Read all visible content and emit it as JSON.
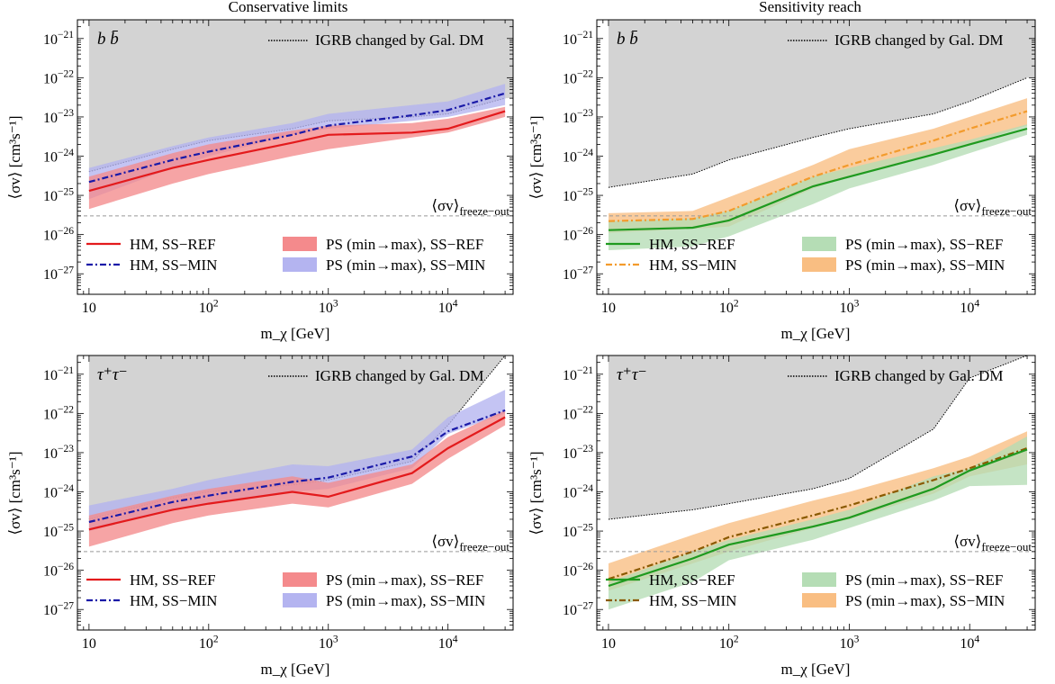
{
  "colors": {
    "grey_region": "#d3d3d3",
    "red": "#e31a1c",
    "red_band": "#f48a8c",
    "blue": "#1a1aa8",
    "blue_band": "#b4b4f0",
    "green": "#1f9a1f",
    "green_band": "#b5ddb5",
    "orange": "#f39b2c",
    "orange_band": "#f9be82",
    "freeze_line": "#999999"
  },
  "chart_data": [
    {
      "type": "area",
      "title": "Conservative limits",
      "channel": "b b̄",
      "xlabel": "m_χ [GeV]",
      "ylabel": "⟨σv⟩ [cm³s⁻¹]",
      "xscale": "log",
      "yscale": "log",
      "xlim": [
        8,
        35000
      ],
      "ylim": [
        3e-28,
        3e-21
      ],
      "xticks": [
        "10",
        "10^2",
        "10^3",
        "10^4"
      ],
      "yticks": [
        "10^-27",
        "10^-26",
        "10^-25",
        "10^-24",
        "10^-23",
        "10^-22",
        "10^-21"
      ],
      "reference_line": {
        "label": "⟨σv⟩ freeze−out",
        "y": 3e-26
      },
      "legend": {
        "igrb_label": "IGRB changed by Gal. DM",
        "lines": [
          {
            "label": "HM, SS−REF",
            "color": "#e31a1c",
            "dash": "solid"
          },
          {
            "label": "HM, SS−MIN",
            "color": "#1a1aa8",
            "dash": "dashdot"
          }
        ],
        "bands": [
          {
            "label": "PS (min→max), SS−REF",
            "color": "#f48a8c"
          },
          {
            "label": "PS (min→max), SS−MIN",
            "color": "#b4b4f0"
          }
        ]
      },
      "igrb_region": {
        "x": [
          10,
          50,
          100,
          500,
          1000,
          5000,
          10000,
          30000
        ],
        "y": [
          4e-25,
          1.5e-24,
          2.5e-24,
          5e-24,
          8e-24,
          1e-23,
          1.2e-23,
          3e-23
        ]
      },
      "series": [
        {
          "name": "HM, SS−MIN",
          "kind": "band",
          "color": "#b4b4f0",
          "x": [
            10,
            50,
            100,
            500,
            1000,
            5000,
            10000,
            30000
          ],
          "lo": [
            8e-26,
            5e-25,
            1e-24,
            3.5e-24,
            5e-24,
            8e-24,
            1e-23,
            2e-23
          ],
          "hi": [
            5e-25,
            1.8e-24,
            3e-24,
            7e-24,
            1.2e-23,
            2e-23,
            2.5e-23,
            7e-23
          ]
        },
        {
          "name": "HM, SS−REF",
          "kind": "band",
          "color": "#f48a8c",
          "x": [
            10,
            50,
            100,
            500,
            1000,
            5000,
            10000,
            30000
          ],
          "lo": [
            4.5e-26,
            2e-25,
            3.5e-25,
            1e-24,
            1.5e-24,
            3e-24,
            4e-24,
            1e-23
          ],
          "hi": [
            3e-25,
            1.2e-24,
            2e-24,
            4.5e-24,
            6e-24,
            7e-24,
            9e-24,
            1.8e-23
          ]
        },
        {
          "name": "HM, SS−REF",
          "kind": "line",
          "color": "#e31a1c",
          "dash": "solid",
          "x": [
            10,
            50,
            100,
            500,
            1000,
            5000,
            10000,
            30000
          ],
          "y": [
            1.3e-25,
            5e-25,
            8e-25,
            2.2e-24,
            3.5e-24,
            4e-24,
            5e-24,
            1.4e-23
          ]
        },
        {
          "name": "HM, SS−MIN",
          "kind": "line",
          "color": "#1a1aa8",
          "dash": "dashdot",
          "x": [
            10,
            50,
            100,
            500,
            1000,
            5000,
            10000,
            30000
          ],
          "y": [
            2.2e-25,
            8e-25,
            1.3e-24,
            3.5e-24,
            6e-24,
            1.1e-23,
            1.5e-23,
            4e-23
          ]
        }
      ]
    },
    {
      "type": "area",
      "title": "Sensitivity reach",
      "channel": "b b̄",
      "xlabel": "m_χ [GeV]",
      "ylabel": "⟨σv⟩ [cm³s⁻¹]",
      "xscale": "log",
      "yscale": "log",
      "xlim": [
        8,
        35000
      ],
      "ylim": [
        3e-28,
        3e-21
      ],
      "xticks": [
        "10",
        "10^2",
        "10^3",
        "10^4"
      ],
      "yticks": [
        "10^-27",
        "10^-26",
        "10^-25",
        "10^-24",
        "10^-23",
        "10^-22",
        "10^-21"
      ],
      "reference_line": {
        "label": "⟨σv⟩ freeze−out",
        "y": 3e-26
      },
      "legend": {
        "igrb_label": "IGRB changed by Gal. DM",
        "lines": [
          {
            "label": "HM, SS−REF",
            "color": "#1f9a1f",
            "dash": "solid"
          },
          {
            "label": "HM, SS−MIN",
            "color": "#f39b2c",
            "dash": "dashdot"
          }
        ],
        "bands": [
          {
            "label": "PS (min→max), SS−REF",
            "color": "#b5ddb5"
          },
          {
            "label": "PS (min→max), SS−MIN",
            "color": "#f9be82"
          }
        ]
      },
      "igrb_region": {
        "x": [
          10,
          50,
          100,
          500,
          1000,
          5000,
          10000,
          30000
        ],
        "y": [
          1.6e-25,
          3.5e-25,
          8e-25,
          3e-24,
          5e-24,
          1.2e-23,
          2.5e-23,
          1e-22
        ]
      },
      "series": [
        {
          "name": "HM, SS−MIN",
          "kind": "band",
          "color": "#f9be82",
          "x": [
            10,
            50,
            100,
            500,
            1000,
            5000,
            10000,
            30000
          ],
          "lo": [
            1.1e-26,
            1.4e-26,
            1.6e-26,
            1.5e-25,
            3e-25,
            1.1e-24,
            2e-24,
            6e-24
          ],
          "hi": [
            3.5e-26,
            4e-26,
            9e-26,
            6e-25,
            1.5e-24,
            5e-24,
            1e-23,
            3e-23
          ]
        },
        {
          "name": "HM, SS−REF",
          "kind": "band",
          "color": "#b5ddb5",
          "x": [
            10,
            50,
            100,
            500,
            1000,
            5000,
            10000,
            30000
          ],
          "lo": [
            4e-27,
            5e-27,
            9e-27,
            6e-26,
            1.5e-25,
            6e-25,
            1.2e-24,
            3.5e-24
          ],
          "hi": [
            2.2e-26,
            2.6e-26,
            4e-26,
            3e-25,
            5e-25,
            1.6e-24,
            2.6e-24,
            6.5e-24
          ]
        },
        {
          "name": "HM, SS−MIN",
          "kind": "line",
          "color": "#f39b2c",
          "dash": "dashdot",
          "x": [
            10,
            50,
            100,
            500,
            1000,
            5000,
            10000,
            30000
          ],
          "y": [
            2.2e-26,
            2.5e-26,
            4e-26,
            3e-25,
            6e-25,
            2.5e-24,
            5e-24,
            1.4e-23
          ]
        },
        {
          "name": "HM, SS−REF",
          "kind": "line",
          "color": "#1f9a1f",
          "dash": "solid",
          "x": [
            10,
            50,
            100,
            500,
            1000,
            5000,
            10000,
            30000
          ],
          "y": [
            1.3e-26,
            1.5e-26,
            2.3e-26,
            1.7e-25,
            3e-25,
            1.1e-24,
            2e-24,
            5e-24
          ]
        }
      ]
    },
    {
      "type": "area",
      "title": "",
      "channel": "τ⁺τ⁻",
      "xlabel": "m_χ [GeV]",
      "ylabel": "⟨σv⟩ [cm³s⁻¹]",
      "xscale": "log",
      "yscale": "log",
      "xlim": [
        8,
        35000
      ],
      "ylim": [
        3e-28,
        3e-21
      ],
      "xticks": [
        "10",
        "10^2",
        "10^3",
        "10^4"
      ],
      "yticks": [
        "10^-27",
        "10^-26",
        "10^-25",
        "10^-24",
        "10^-23",
        "10^-22",
        "10^-21"
      ],
      "reference_line": {
        "label": "⟨σv⟩ freeze−out",
        "y": 3e-26
      },
      "legend": {
        "igrb_label": "IGRB changed by Gal. DM",
        "lines": [
          {
            "label": "HM, SS−REF",
            "color": "#e31a1c",
            "dash": "solid"
          },
          {
            "label": "HM, SS−MIN",
            "color": "#1a1aa8",
            "dash": "dashdot"
          }
        ],
        "bands": [
          {
            "label": "PS (min→max), SS−REF",
            "color": "#f48a8c"
          },
          {
            "label": "PS (min→max), SS−MIN",
            "color": "#b4b4f0"
          }
        ]
      },
      "igrb_region": {
        "x": [
          10,
          50,
          100,
          500,
          1000,
          5000,
          10000,
          30000
        ],
        "y": [
          2e-25,
          7e-25,
          1e-24,
          1.5e-24,
          2e-24,
          6e-24,
          5e-23,
          3e-21
        ]
      },
      "series": [
        {
          "name": "HM, SS−MIN",
          "kind": "band",
          "color": "#b4b4f0",
          "x": [
            10,
            50,
            100,
            500,
            1000,
            5000,
            10000,
            30000
          ],
          "lo": [
            1e-25,
            3.5e-25,
            5e-25,
            1e-24,
            1.2e-24,
            4e-24,
            3e-23,
            1e-22
          ],
          "hi": [
            4.5e-25,
            1.2e-24,
            2e-24,
            5e-24,
            4.5e-24,
            1.2e-23,
            8e-23,
            4e-22
          ]
        },
        {
          "name": "HM, SS−REF",
          "kind": "band",
          "color": "#f48a8c",
          "x": [
            10,
            50,
            100,
            500,
            1000,
            5000,
            10000,
            30000
          ],
          "lo": [
            4e-26,
            1.6e-25,
            2.5e-25,
            5e-25,
            4e-25,
            1.6e-24,
            7e-24,
            5e-23
          ],
          "hi": [
            2.5e-25,
            8e-25,
            1.2e-24,
            2.5e-24,
            1.7e-24,
            5e-24,
            2.5e-23,
            1.2e-22
          ]
        },
        {
          "name": "HM, SS−REF",
          "kind": "line",
          "color": "#e31a1c",
          "dash": "solid",
          "x": [
            10,
            50,
            100,
            500,
            1000,
            5000,
            10000,
            30000
          ],
          "y": [
            1.1e-25,
            3.5e-25,
            5e-25,
            1e-24,
            7.5e-25,
            3e-24,
            1.3e-23,
            8e-23
          ]
        },
        {
          "name": "HM, SS−MIN",
          "kind": "line",
          "color": "#1a1aa8",
          "dash": "dashdot",
          "x": [
            10,
            50,
            100,
            500,
            1000,
            5000,
            10000,
            30000
          ],
          "y": [
            1.7e-25,
            5.5e-25,
            8e-25,
            1.8e-24,
            2.3e-24,
            8e-24,
            3.5e-23,
            1.2e-22
          ]
        }
      ]
    },
    {
      "type": "area",
      "title": "",
      "channel": "τ⁺τ⁻",
      "xlabel": "m_χ [GeV]",
      "ylabel": "⟨σv⟩ [cm³s⁻¹]",
      "xscale": "log",
      "yscale": "log",
      "xlim": [
        8,
        35000
      ],
      "ylim": [
        3e-28,
        3e-21
      ],
      "xticks": [
        "10",
        "10^2",
        "10^3",
        "10^4"
      ],
      "yticks": [
        "10^-27",
        "10^-26",
        "10^-25",
        "10^-24",
        "10^-23",
        "10^-22",
        "10^-21"
      ],
      "reference_line": {
        "label": "⟨σv⟩ freeze−out",
        "y": 3e-26
      },
      "legend": {
        "igrb_label": "IGRB changed by Gal. DM",
        "lines": [
          {
            "label": "HM, SS−REF",
            "color": "#1f9a1f",
            "dash": "solid"
          },
          {
            "label": "HM, SS−MIN",
            "color": "#8a5a00",
            "dash": "dashdot"
          }
        ],
        "bands": [
          {
            "label": "PS (min→max), SS−REF",
            "color": "#b5ddb5"
          },
          {
            "label": "PS (min→max), SS−MIN",
            "color": "#f9be82"
          }
        ]
      },
      "igrb_region": {
        "x": [
          10,
          50,
          100,
          500,
          1000,
          5000,
          10000,
          30000
        ],
        "y": [
          2e-25,
          3.5e-25,
          5e-25,
          1.2e-24,
          2.2e-24,
          4e-23,
          8e-22,
          3e-21
        ]
      },
      "series": [
        {
          "name": "HM, SS−MIN",
          "kind": "band",
          "color": "#f9be82",
          "x": [
            10,
            50,
            100,
            500,
            1000,
            5000,
            10000,
            30000
          ],
          "lo": [
            3e-27,
            1.5e-26,
            3e-26,
            1.2e-25,
            2e-25,
            9e-25,
            2.5e-24,
            5e-24
          ],
          "hi": [
            1.5e-26,
            8e-26,
            1.6e-25,
            6e-25,
            1e-24,
            4e-24,
            8e-24,
            3.5e-23
          ]
        },
        {
          "name": "HM, SS−REF",
          "kind": "band",
          "color": "#b5ddb5",
          "x": [
            10,
            50,
            100,
            500,
            1000,
            5000,
            10000,
            30000
          ],
          "lo": [
            1e-27,
            5e-27,
            1.8e-26,
            6e-26,
            1.2e-25,
            6e-25,
            1.4e-24,
            1.5e-24
          ],
          "hi": [
            5e-27,
            3e-26,
            6e-26,
            2e-25,
            3.5e-25,
            2.5e-24,
            4e-24,
            2.6e-23
          ]
        },
        {
          "name": "HM, SS−MIN",
          "kind": "line",
          "color": "#8a5a00",
          "dash": "dashdot",
          "x": [
            10,
            50,
            100,
            500,
            1000,
            5000,
            10000,
            30000
          ],
          "y": [
            6e-27,
            3e-26,
            7e-26,
            2.5e-25,
            4.5e-25,
            2e-24,
            4e-24,
            1.3e-23
          ]
        },
        {
          "name": "HM, SS−REF",
          "kind": "line",
          "color": "#1f9a1f",
          "dash": "solid",
          "x": [
            10,
            50,
            100,
            500,
            1000,
            5000,
            10000,
            30000
          ],
          "y": [
            4e-27,
            2e-26,
            4.5e-26,
            1.3e-25,
            2.2e-25,
            1.2e-24,
            3.5e-24,
            1.2e-23
          ]
        }
      ]
    }
  ]
}
